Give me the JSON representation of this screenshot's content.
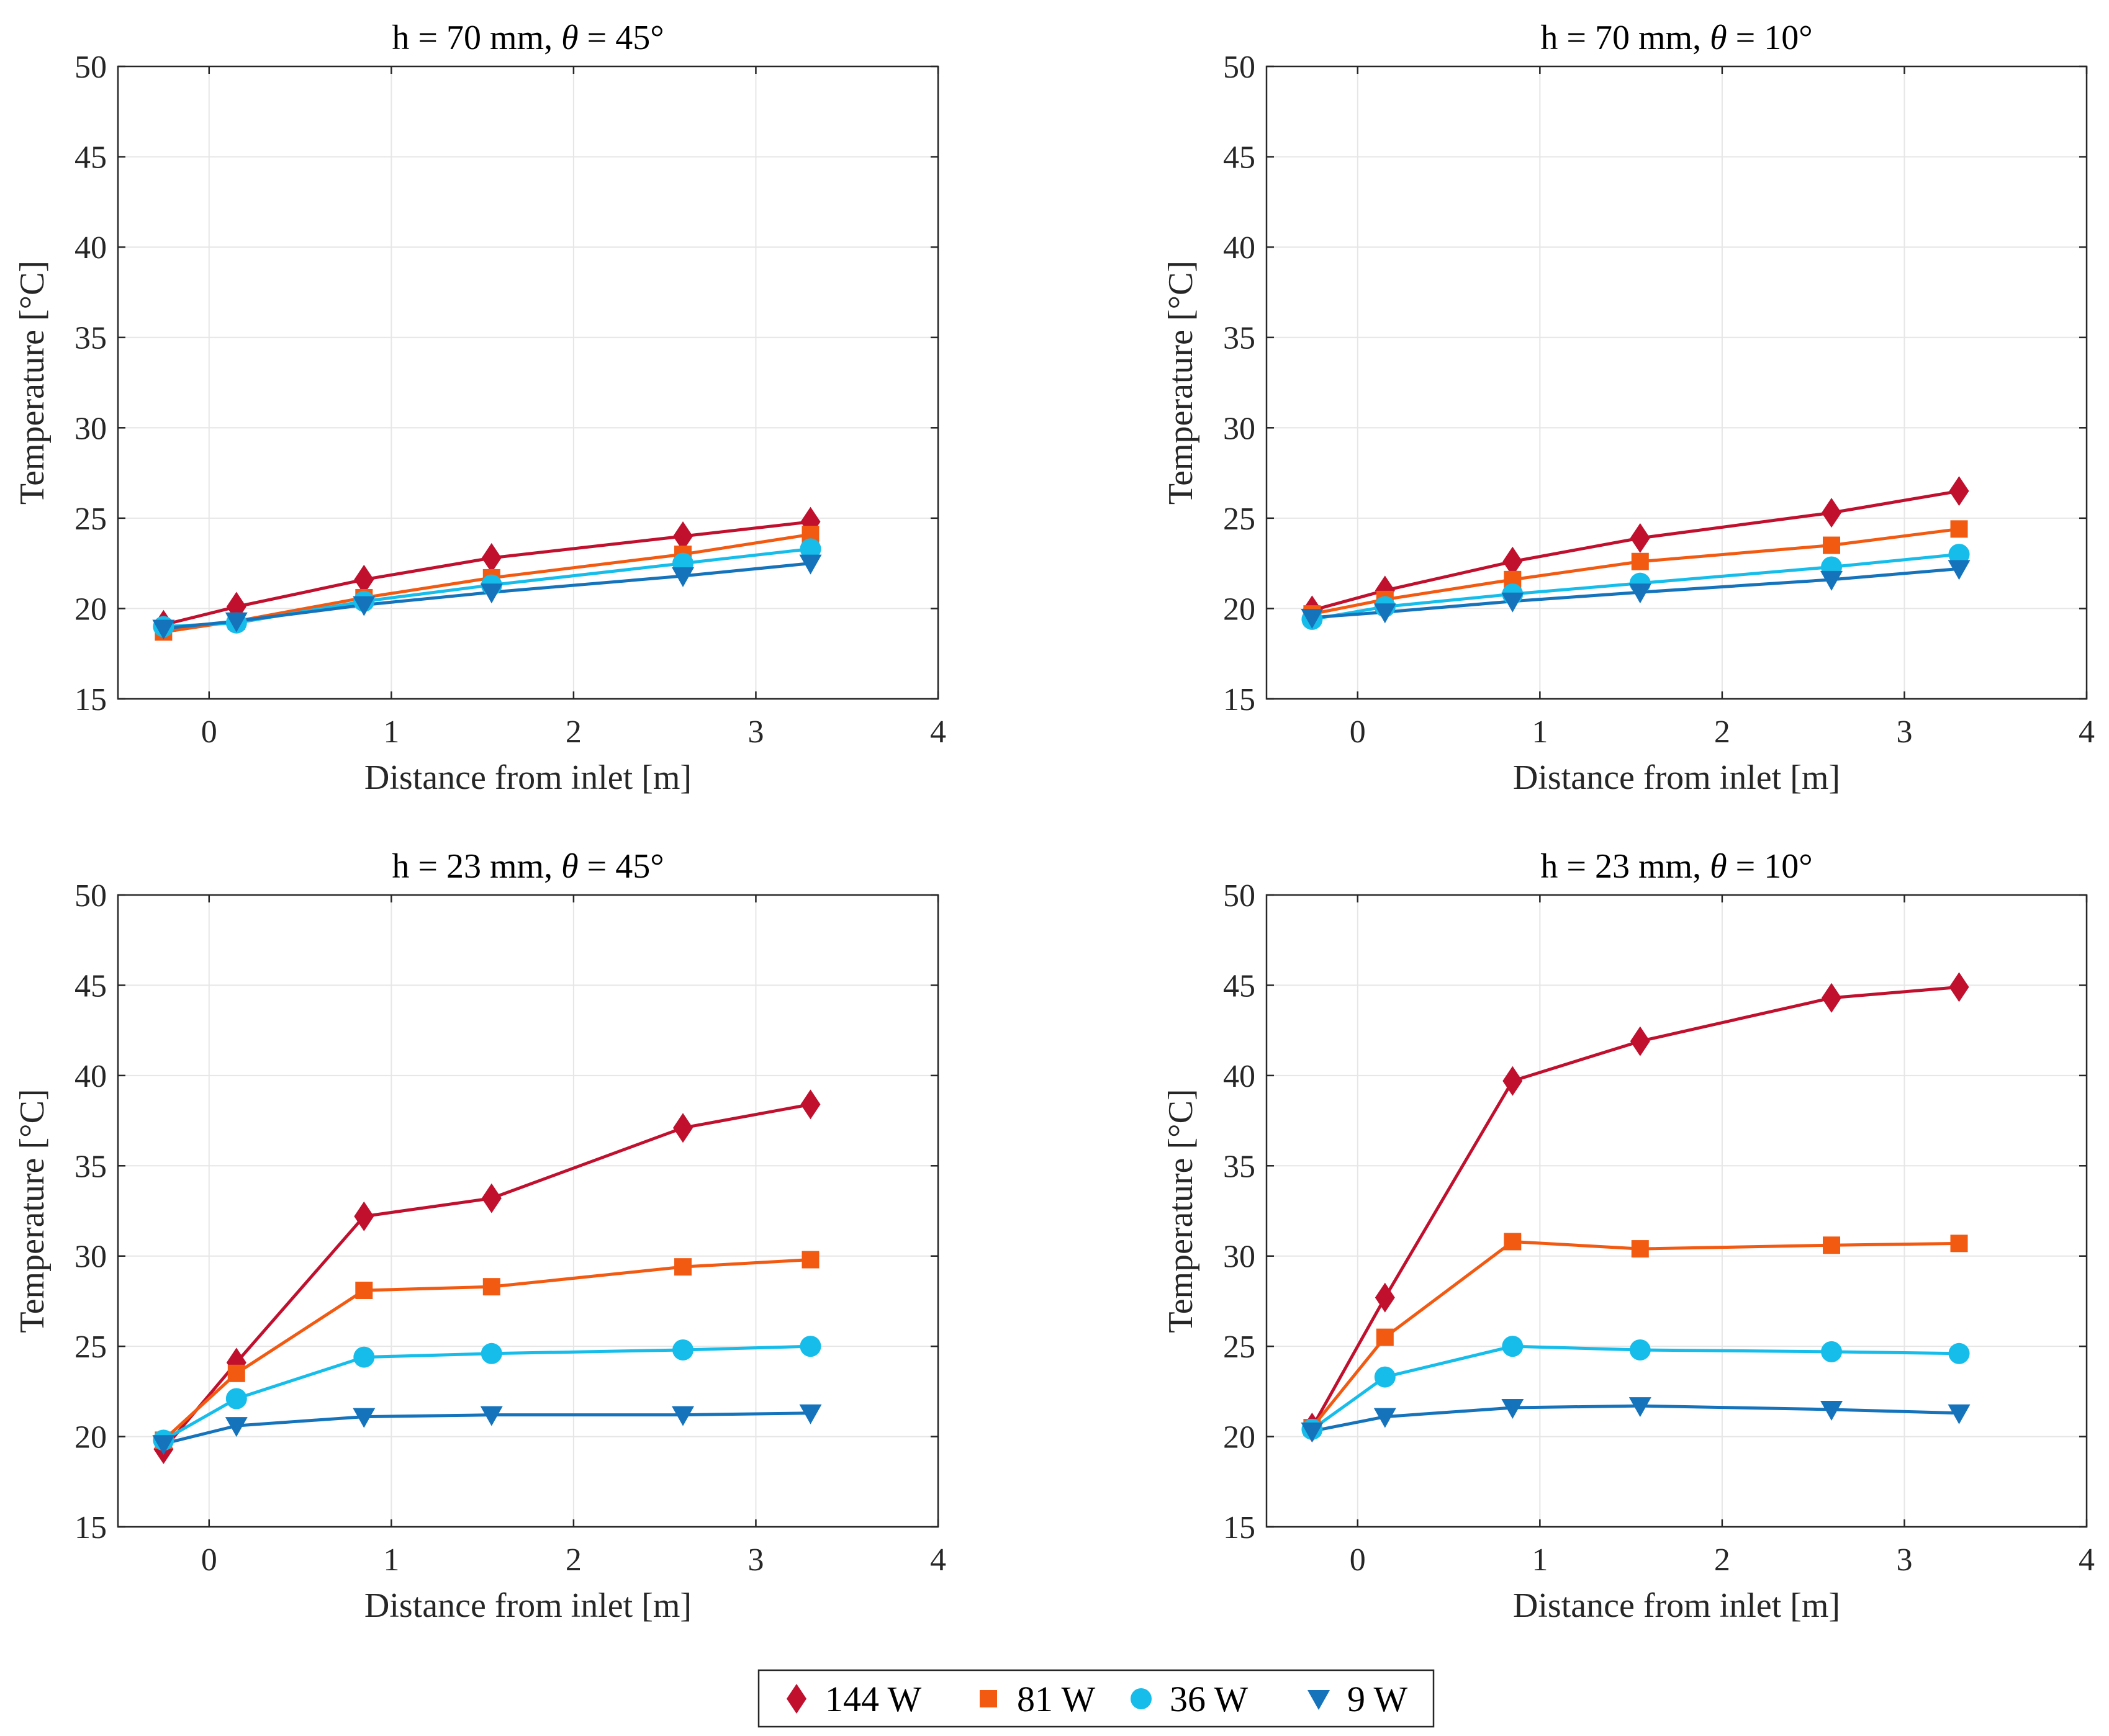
{
  "chart_data": [
    {
      "type": "line",
      "title": "h = 70 mm, θ = 45°",
      "title_parts": {
        "pre": "h = 70 mm, ",
        "sym": "θ",
        "post": " = 45°"
      },
      "xlabel": "Distance from inlet [m]",
      "ylabel": "Temperature [°C]",
      "xlim": [
        -0.5,
        4
      ],
      "ylim": [
        15,
        50
      ],
      "xticks": [
        "0",
        "1",
        "2",
        "3",
        "4"
      ],
      "yticks": [
        "15",
        "20",
        "25",
        "30",
        "35",
        "40",
        "45",
        "50"
      ],
      "grid": true,
      "x": [
        -0.25,
        0.15,
        0.85,
        1.55,
        2.6,
        3.3
      ],
      "series": [
        {
          "name": "144 W",
          "values": [
            19.1,
            20.1,
            21.6,
            22.8,
            24.0,
            24.8
          ]
        },
        {
          "name": "81 W",
          "values": [
            18.7,
            19.3,
            20.6,
            21.7,
            23.0,
            24.1
          ]
        },
        {
          "name": "36 W",
          "values": [
            19.0,
            19.2,
            20.4,
            21.3,
            22.5,
            23.3
          ]
        },
        {
          "name": "9 W",
          "values": [
            18.9,
            19.3,
            20.2,
            20.9,
            21.8,
            22.5
          ]
        }
      ]
    },
    {
      "type": "line",
      "title": "h = 70 mm, θ = 10°",
      "title_parts": {
        "pre": "h = 70 mm, ",
        "sym": "θ",
        "post": " = 10°"
      },
      "xlabel": "Distance from inlet [m]",
      "ylabel": "Temperature [°C]",
      "xlim": [
        -0.5,
        4
      ],
      "ylim": [
        15,
        50
      ],
      "xticks": [
        "0",
        "1",
        "2",
        "3",
        "4"
      ],
      "yticks": [
        "15",
        "20",
        "25",
        "30",
        "35",
        "40",
        "45",
        "50"
      ],
      "grid": true,
      "x": [
        -0.25,
        0.15,
        0.85,
        1.55,
        2.6,
        3.3
      ],
      "series": [
        {
          "name": "144 W",
          "values": [
            19.9,
            21.0,
            22.6,
            23.9,
            25.3,
            26.5
          ]
        },
        {
          "name": "81 W",
          "values": [
            19.7,
            20.5,
            21.6,
            22.6,
            23.5,
            24.4
          ]
        },
        {
          "name": "36 W",
          "values": [
            19.4,
            20.1,
            20.8,
            21.4,
            22.3,
            23.0
          ]
        },
        {
          "name": "9 W",
          "values": [
            19.5,
            19.8,
            20.4,
            20.9,
            21.6,
            22.2
          ]
        }
      ]
    },
    {
      "type": "line",
      "title": "h = 23 mm, θ = 45°",
      "title_parts": {
        "pre": "h = 23 mm, ",
        "sym": "θ",
        "post": " = 45°"
      },
      "xlabel": "Distance from inlet [m]",
      "ylabel": "Temperature [°C]",
      "xlim": [
        -0.5,
        4
      ],
      "ylim": [
        15,
        50
      ],
      "xticks": [
        "0",
        "1",
        "2",
        "3",
        "4"
      ],
      "yticks": [
        "15",
        "20",
        "25",
        "30",
        "35",
        "40",
        "45",
        "50"
      ],
      "grid": true,
      "x": [
        -0.25,
        0.15,
        0.85,
        1.55,
        2.6,
        3.3
      ],
      "series": [
        {
          "name": "144 W",
          "values": [
            19.3,
            24.1,
            32.2,
            33.2,
            37.1,
            38.4
          ]
        },
        {
          "name": "81 W",
          "values": [
            19.8,
            23.5,
            28.1,
            28.3,
            29.4,
            29.8
          ]
        },
        {
          "name": "36 W",
          "values": [
            19.8,
            22.1,
            24.4,
            24.6,
            24.8,
            25.0
          ]
        },
        {
          "name": "9 W",
          "values": [
            19.6,
            20.6,
            21.1,
            21.2,
            21.2,
            21.3
          ]
        }
      ]
    },
    {
      "type": "line",
      "title": "h = 23 mm, θ = 10°",
      "title_parts": {
        "pre": "h = 23 mm, ",
        "sym": "θ",
        "post": " = 10°"
      },
      "xlabel": "Distance from inlet [m]",
      "ylabel": "Temperature [°C]",
      "xlim": [
        -0.5,
        4
      ],
      "ylim": [
        15,
        50
      ],
      "xticks": [
        "0",
        "1",
        "2",
        "3",
        "4"
      ],
      "yticks": [
        "15",
        "20",
        "25",
        "30",
        "35",
        "40",
        "45",
        "50"
      ],
      "grid": true,
      "x": [
        -0.25,
        0.15,
        0.85,
        1.55,
        2.6,
        3.3
      ],
      "series": [
        {
          "name": "144 W",
          "values": [
            20.5,
            27.7,
            39.7,
            41.9,
            44.3,
            44.9
          ]
        },
        {
          "name": "81 W",
          "values": [
            20.5,
            25.5,
            30.8,
            30.4,
            30.6,
            30.7
          ]
        },
        {
          "name": "36 W",
          "values": [
            20.4,
            23.3,
            25.0,
            24.8,
            24.7,
            24.6
          ]
        },
        {
          "name": "9 W",
          "values": [
            20.3,
            21.1,
            21.6,
            21.7,
            21.5,
            21.3
          ]
        }
      ]
    }
  ],
  "legend": {
    "placement": "bottom-center",
    "entries": [
      {
        "label": "144 W",
        "marker": "diamond",
        "color": "#C0102E"
      },
      {
        "label": "81 W",
        "marker": "square",
        "color": "#F25A12"
      },
      {
        "label": "36 W",
        "marker": "circle",
        "color": "#16BDEA"
      },
      {
        "label": "9 W",
        "marker": "triangle-down",
        "color": "#1573BC"
      }
    ]
  }
}
